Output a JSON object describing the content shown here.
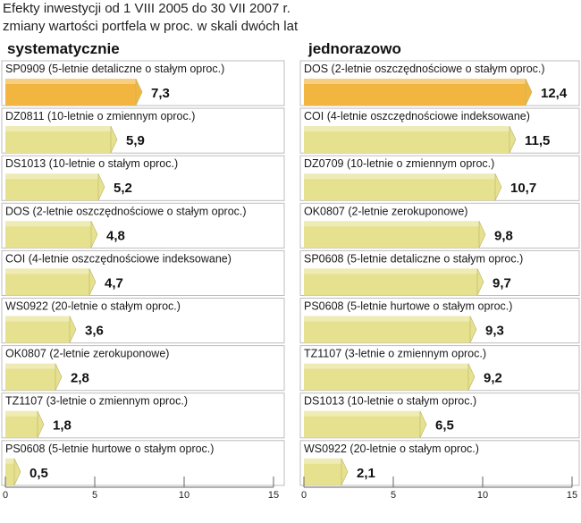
{
  "title": {
    "line1": "Efekty inwestycji od 1 VIII 2005 do 30 VII 2007 r.",
    "line2": "zmiany wartości portfela w proc. w skali dwóch lat"
  },
  "colors": {
    "highlight": "#f2b640",
    "normal": "#e6e18e",
    "frame": "#bdbdbd",
    "axis": "#666666"
  },
  "chart_data": [
    {
      "type": "bar",
      "title": "systematycznie",
      "xlim": [
        0,
        15
      ],
      "ticks": [
        0,
        5,
        10,
        15
      ],
      "categories": [
        "SP0909 (5-letnie detaliczne o stałym oproc.)",
        "DZ0811 (10-letnie o zmiennym oproc.)",
        "DS1013 (10-letnie o stałym oproc.)",
        "DOS (2-letnie oszczędnościowe o stałym oproc.)",
        "COI (4-letnie oszczędnościowe indeksowane)",
        "WS0922 (20-letnie o stałym oproc.)",
        "OK0807 (2-letnie zerokuponowe)",
        "TZ1107 (3-letnie o zmiennym oproc.)",
        "PS0608 (5-letnie hurtowe o stałym oproc.)"
      ],
      "values": [
        7.3,
        5.9,
        5.2,
        4.8,
        4.7,
        3.6,
        2.8,
        1.8,
        0.5
      ],
      "value_labels": [
        "7,3",
        "5,9",
        "5,2",
        "4,8",
        "4,7",
        "3,6",
        "2,8",
        "1,8",
        "0,5"
      ],
      "highlight_index": 0
    },
    {
      "type": "bar",
      "title": "jednorazowo",
      "xlim": [
        0,
        15
      ],
      "ticks": [
        0,
        5,
        10,
        15
      ],
      "categories": [
        "DOS (2-letnie oszczędnościowe o stałym oproc.)",
        "COI (4-letnie oszczędnościowe indeksowane)",
        "DZ0709 (10-letnie o zmiennym oproc.)",
        "OK0807 (2-letnie zerokuponowe)",
        "SP0608 (5-letnie detaliczne o stałym oproc.)",
        "PS0608 (5-letnie hurtowe o stałym oproc.)",
        "TZ1107 (3-letnie o zmiennym oproc.)",
        "DS1013 (10-letnie o stałym oproc.)",
        "WS0922 (20-letnie o stałym oproc.)"
      ],
      "values": [
        12.4,
        11.5,
        10.7,
        9.8,
        9.7,
        9.3,
        9.2,
        6.5,
        2.1
      ],
      "value_labels": [
        "12,4",
        "11,5",
        "10,7",
        "9,8",
        "9,7",
        "9,3",
        "9,2",
        "6,5",
        "2,1"
      ],
      "highlight_index": 0
    }
  ]
}
